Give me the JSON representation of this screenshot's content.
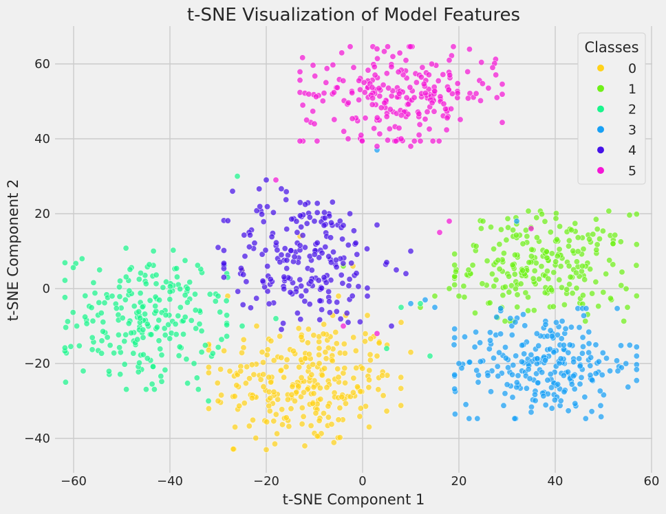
{
  "chart_data": {
    "type": "scatter",
    "title": "t-SNE Visualization of Model Features",
    "xlabel": "t-SNE Component 1",
    "ylabel": "t-SNE Component 2",
    "xlim": [
      -63,
      60
    ],
    "ylim": [
      -48,
      70
    ],
    "xticks": [
      -60,
      -40,
      -20,
      0,
      20,
      40,
      60
    ],
    "xtick_labels": [
      "−60",
      "−40",
      "−20",
      "0",
      "20",
      "40",
      "60"
    ],
    "yticks": [
      -40,
      -20,
      0,
      20,
      40,
      60
    ],
    "ytick_labels": [
      "−40",
      "−20",
      "0",
      "20",
      "40",
      "60"
    ],
    "grid": true,
    "legend": {
      "title": "Classes",
      "position": "top-right"
    },
    "series": [
      {
        "name": "0",
        "color": "#ffd21a",
        "cluster": {
          "center": [
            -12,
            -25
          ],
          "spread": [
            9.5,
            8.5
          ],
          "count": 260
        },
        "points": [
          [
            -28,
            -2
          ],
          [
            -22,
            -10
          ],
          [
            -5,
            -2
          ],
          [
            8,
            -9
          ],
          [
            3,
            -18
          ],
          [
            -30,
            -30
          ],
          [
            -20,
            -43
          ],
          [
            -12,
            -42
          ],
          [
            -5,
            -35
          ],
          [
            -2,
            6
          ],
          [
            -25,
            5
          ],
          [
            -13,
            14
          ],
          [
            10,
            -17
          ]
        ]
      },
      {
        "name": "1",
        "color": "#6ff019",
        "cluster": {
          "center": [
            38,
            6
          ],
          "spread": [
            9,
            7
          ],
          "count": 240
        },
        "points": [
          [
            20,
            -2
          ],
          [
            22,
            5
          ],
          [
            15,
            -2
          ],
          [
            25,
            18
          ],
          [
            52,
            12
          ],
          [
            55,
            -5
          ],
          [
            18,
            0
          ],
          [
            -4,
            6
          ],
          [
            12,
            -5
          ]
        ]
      },
      {
        "name": "2",
        "color": "#1af58c",
        "cluster": {
          "center": [
            -45,
            -8
          ],
          "spread": [
            8,
            9
          ],
          "count": 220
        },
        "points": [
          [
            -58,
            -22
          ],
          [
            -52,
            -2
          ],
          [
            -30,
            -2
          ],
          [
            -25,
            -10
          ],
          [
            -28,
            3
          ],
          [
            -35,
            -20
          ],
          [
            -32,
            -30
          ],
          [
            -26,
            30
          ],
          [
            -18,
            -8
          ],
          [
            5,
            -16
          ],
          [
            8,
            -5
          ],
          [
            14,
            -18
          ],
          [
            12,
            -4
          ]
        ]
      },
      {
        "name": "3",
        "color": "#18a0f5",
        "cluster": {
          "center": [
            38,
            -20
          ],
          "spread": [
            9,
            7
          ],
          "count": 240
        },
        "points": [
          [
            20,
            -20
          ],
          [
            24,
            -25
          ],
          [
            53,
            -22
          ],
          [
            35,
            -33
          ],
          [
            19,
            -15
          ],
          [
            32,
            18
          ],
          [
            13,
            -3
          ],
          [
            15,
            -5
          ],
          [
            10,
            -4
          ],
          [
            3,
            37
          ]
        ]
      },
      {
        "name": "4",
        "color": "#4612e8",
        "cluster": {
          "center": [
            -12,
            8
          ],
          "spread": [
            8,
            9
          ],
          "count": 200
        },
        "points": [
          [
            -30,
            11
          ],
          [
            -27,
            26
          ],
          [
            -20,
            29
          ],
          [
            -15,
            -1
          ],
          [
            3,
            17
          ],
          [
            -3,
            -9
          ],
          [
            5,
            7
          ],
          [
            7,
            5
          ],
          [
            9,
            4
          ],
          [
            10,
            10
          ],
          [
            6,
            -10
          ],
          [
            -10,
            18
          ],
          [
            -8,
            3
          ]
        ]
      },
      {
        "name": "5",
        "color": "#f416d6",
        "cluster": {
          "center": [
            8,
            52
          ],
          "spread": [
            10,
            6
          ],
          "count": 230
        },
        "points": [
          [
            -10,
            44
          ],
          [
            -3,
            40
          ],
          [
            3,
            38
          ],
          [
            10,
            38
          ],
          [
            18,
            61
          ],
          [
            27,
            59
          ],
          [
            -18,
            29
          ],
          [
            3,
            64
          ],
          [
            35,
            16
          ],
          [
            18,
            18
          ],
          [
            16,
            15
          ],
          [
            3,
            -12
          ],
          [
            -4,
            -10
          ],
          [
            8,
            40
          ]
        ]
      }
    ]
  }
}
